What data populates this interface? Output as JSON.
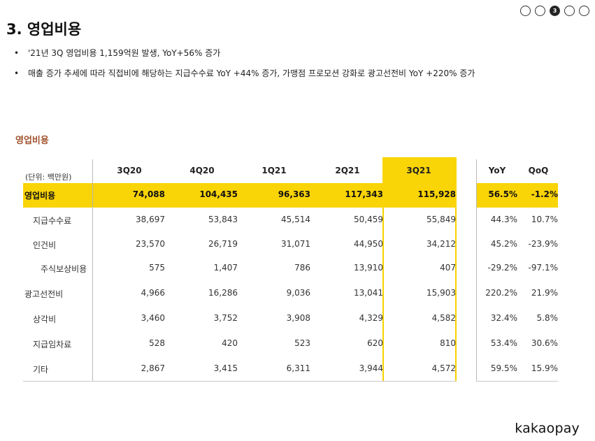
{
  "page": {
    "title": "3. 영업비용",
    "current_page": 3
  },
  "pager": {
    "dots": [
      "",
      "",
      "3",
      "",
      ""
    ]
  },
  "bullets": [
    "'21년 3Q 영업비용 1,159억원 발생, YoY+56% 증가",
    "매출 증가 추세에 따라 직접비에 해당하는 지급수수료 YoY +44% 증가, 가맹점 프로모션 강화로 광고선전비 YoY +220% 증가"
  ],
  "section_label": "영업비용",
  "table": {
    "unit_label": "(단위: 백만원)",
    "columns": [
      "3Q20",
      "4Q20",
      "1Q21",
      "2Q21",
      "3Q21"
    ],
    "growth_columns": [
      "YoY",
      "QoQ"
    ],
    "highlight_color": "#f9d406",
    "rows": [
      {
        "label": "영업비용",
        "values": [
          "74,088",
          "104,435",
          "96,363",
          "117,343",
          "115,928"
        ],
        "yoy": "56.5%",
        "qoq": "-1.2%"
      },
      {
        "label": "지급수수료",
        "values": [
          "38,697",
          "53,843",
          "45,514",
          "50,459",
          "55,849"
        ],
        "yoy": "44.3%",
        "qoq": "10.7%"
      },
      {
        "label": "인건비",
        "values": [
          "23,570",
          "26,719",
          "31,071",
          "44,950",
          "34,212"
        ],
        "yoy": "45.2%",
        "qoq": "-23.9%"
      },
      {
        "label": "주식보상비용",
        "values": [
          "575",
          "1,407",
          "786",
          "13,910",
          "407"
        ],
        "yoy": "-29.2%",
        "qoq": "-97.1%"
      },
      {
        "label": "광고선전비",
        "values": [
          "4,966",
          "16,286",
          "9,036",
          "13,041",
          "15,903"
        ],
        "yoy": "220.2%",
        "qoq": "21.9%"
      },
      {
        "label": "상각비",
        "values": [
          "3,460",
          "3,752",
          "3,908",
          "4,329",
          "4,582"
        ],
        "yoy": "32.4%",
        "qoq": "5.8%"
      },
      {
        "label": "지급임차료",
        "values": [
          "528",
          "420",
          "523",
          "620",
          "810"
        ],
        "yoy": "53.4%",
        "qoq": "30.6%"
      },
      {
        "label": "기타",
        "values": [
          "2,867",
          "3,415",
          "6,311",
          "3,944",
          "4,572"
        ],
        "yoy": "59.5%",
        "qoq": "15.9%"
      }
    ]
  },
  "logo": "kakaopay"
}
